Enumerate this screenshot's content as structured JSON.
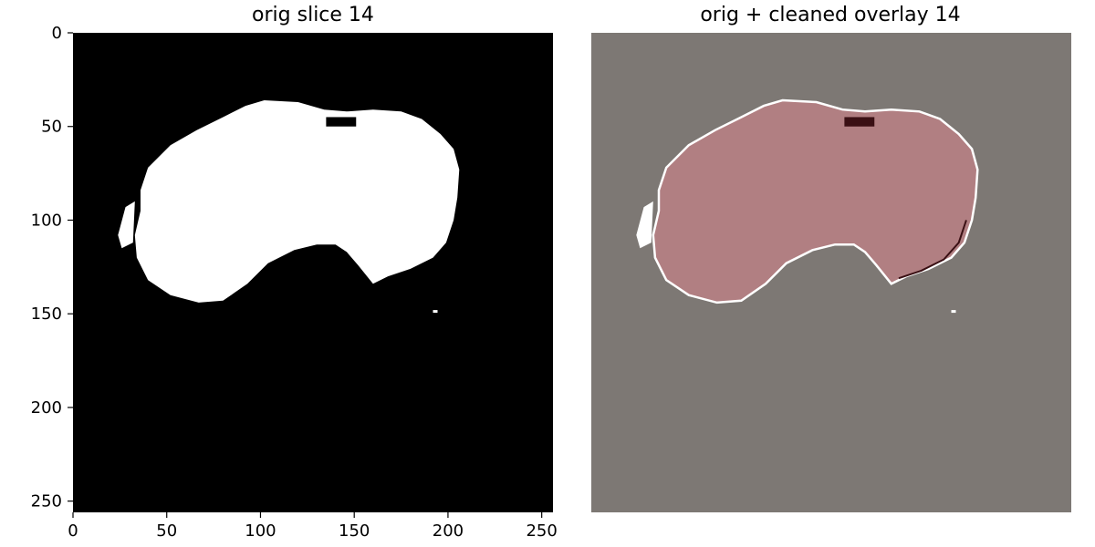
{
  "chart_data": [
    {
      "type": "heatmap",
      "title": "orig slice 14",
      "xlim": [
        0,
        256
      ],
      "ylim": [
        256,
        0
      ],
      "x_ticks": [
        0,
        50,
        100,
        150,
        200,
        250
      ],
      "y_ticks": [
        0,
        50,
        100,
        150,
        200,
        250
      ],
      "show_axes": true,
      "background_color": "#000000",
      "foreground_color": "#ffffff",
      "mask_outline": [
        [
          102,
          36
        ],
        [
          120,
          37
        ],
        [
          134,
          41
        ],
        [
          146,
          42
        ],
        [
          160,
          41
        ],
        [
          175,
          42
        ],
        [
          186,
          46
        ],
        [
          196,
          54
        ],
        [
          203,
          62
        ],
        [
          206,
          73
        ],
        [
          205,
          88
        ],
        [
          203,
          100
        ],
        [
          199,
          112
        ],
        [
          192,
          120
        ],
        [
          180,
          126
        ],
        [
          168,
          130
        ],
        [
          160,
          134
        ],
        [
          152,
          124
        ],
        [
          146,
          117
        ],
        [
          140,
          113
        ],
        [
          130,
          113
        ],
        [
          118,
          116
        ],
        [
          104,
          123
        ],
        [
          93,
          134
        ],
        [
          80,
          143
        ],
        [
          67,
          144
        ],
        [
          52,
          140
        ],
        [
          40,
          132
        ],
        [
          34,
          120
        ],
        [
          33,
          108
        ],
        [
          36,
          95
        ],
        [
          36,
          84
        ],
        [
          40,
          72
        ],
        [
          52,
          60
        ],
        [
          66,
          52
        ],
        [
          80,
          45
        ],
        [
          92,
          39
        ]
      ],
      "blobs": [
        {
          "x": 143,
          "y": 47,
          "note": ""
        }
      ]
    },
    {
      "type": "heatmap",
      "title": "orig + cleaned overlay 14",
      "xlim": [
        0,
        256
      ],
      "ylim": [
        256,
        0
      ],
      "show_axes": false,
      "background_color": "#7d7874",
      "overlay_color": "#b17f82",
      "edge_color": "#ffffff",
      "defect_color": "#3a1014",
      "mask_outline": [
        [
          102,
          36
        ],
        [
          120,
          37
        ],
        [
          134,
          41
        ],
        [
          146,
          42
        ],
        [
          160,
          41
        ],
        [
          175,
          42
        ],
        [
          186,
          46
        ],
        [
          196,
          54
        ],
        [
          203,
          62
        ],
        [
          206,
          73
        ],
        [
          205,
          88
        ],
        [
          203,
          100
        ],
        [
          199,
          112
        ],
        [
          192,
          120
        ],
        [
          180,
          126
        ],
        [
          168,
          130
        ],
        [
          160,
          134
        ],
        [
          152,
          124
        ],
        [
          146,
          117
        ],
        [
          140,
          113
        ],
        [
          130,
          113
        ],
        [
          118,
          116
        ],
        [
          104,
          123
        ],
        [
          93,
          134
        ],
        [
          80,
          143
        ],
        [
          67,
          144
        ],
        [
          52,
          140
        ],
        [
          40,
          132
        ],
        [
          34,
          120
        ],
        [
          33,
          108
        ],
        [
          36,
          95
        ],
        [
          36,
          84
        ],
        [
          40,
          72
        ],
        [
          52,
          60
        ],
        [
          66,
          52
        ],
        [
          80,
          45
        ],
        [
          92,
          39
        ]
      ]
    }
  ]
}
